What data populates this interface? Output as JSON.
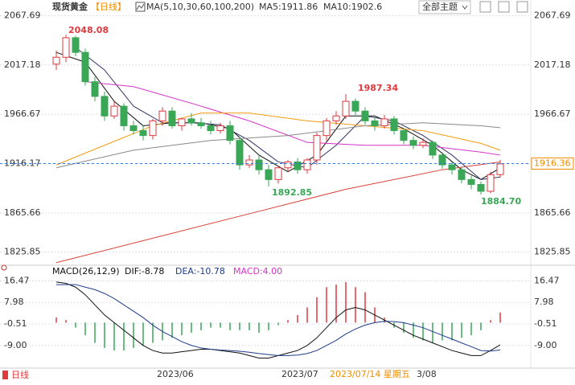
{
  "header": {
    "title": "现货黄金",
    "period": "【日线】",
    "ma_legend": [
      "MA(5,10,30,60,100,200)",
      "MA5:1911.86",
      "MA10:1902.6"
    ],
    "theme_button": "全部主题"
  },
  "chart_data": [
    {
      "type": "candlestick",
      "up_color": "#e0393e",
      "down_color": "#3aa757",
      "open": [
        2018,
        2025,
        2045,
        2030,
        2000,
        1985,
        1965,
        1975,
        1955,
        1950,
        1945,
        1960,
        1970,
        1955,
        1962,
        1958,
        1955,
        1950,
        1955,
        1940,
        1915,
        1920,
        1910,
        1900,
        1912,
        1918,
        1910,
        1920,
        1945,
        1960,
        1965,
        1980,
        1970,
        1960,
        1955,
        1962,
        1950,
        1940,
        1935,
        1938,
        1925,
        1915,
        1910,
        1900,
        1895,
        1888,
        1905
      ],
      "high": [
        2032,
        2048.08,
        2047,
        2034,
        2005,
        1990,
        1980,
        1978,
        1960,
        1955,
        1962,
        1974,
        1974,
        1963,
        1968,
        1963,
        1960,
        1958,
        1960,
        1944,
        1925,
        1924,
        1915,
        1914,
        1920,
        1922,
        1922,
        1948,
        1963,
        1970,
        1987.34,
        1983,
        1974,
        1964,
        1966,
        1965,
        1953,
        1944,
        1942,
        1940,
        1928,
        1918,
        1913,
        1904,
        1898,
        1908,
        1920
      ],
      "low": [
        2012,
        2020,
        2026,
        1996,
        1980,
        1960,
        1962,
        1950,
        1946,
        1940,
        1941,
        1955,
        1952,
        1950,
        1955,
        1952,
        1946,
        1947,
        1936,
        1910,
        1912,
        1905,
        1892.85,
        1896,
        1908,
        1906,
        1906,
        1915,
        1940,
        1956,
        1962,
        1966,
        1956,
        1950,
        1952,
        1946,
        1936,
        1931,
        1932,
        1921,
        1911,
        1905,
        1896,
        1890,
        1884.7,
        1886,
        1902
      ],
      "close": [
        2025,
        2045,
        2030,
        2000,
        1985,
        1965,
        1975,
        1955,
        1950,
        1945,
        1960,
        1970,
        1955,
        1962,
        1958,
        1955,
        1950,
        1955,
        1940,
        1915,
        1920,
        1910,
        1900,
        1912,
        1918,
        1910,
        1920,
        1945,
        1960,
        1965,
        1980,
        1970,
        1960,
        1955,
        1962,
        1950,
        1940,
        1935,
        1938,
        1925,
        1915,
        1910,
        1900,
        1895,
        1888,
        1905,
        1916
      ],
      "ylim": [
        1814,
        2077
      ],
      "yticks": [
        2067.69,
        2017.18,
        1966.67,
        1916.17,
        1865.66,
        1825.85
      ],
      "grid": true,
      "last_price": 1916.36,
      "annotations": [
        "2048.08",
        "1987.34",
        "1892.85",
        "1884.70"
      ],
      "series": [
        {
          "color": "#111111",
          "x": [
            0,
            3,
            6,
            9,
            12,
            15,
            18,
            21,
            24,
            27,
            30,
            33,
            36,
            39,
            42,
            44,
            46
          ],
          "values": [
            2030,
            2020,
            1980,
            1955,
            1958,
            1958,
            1952,
            1925,
            1908,
            1925,
            1965,
            1965,
            1952,
            1935,
            1910,
            1900,
            1911.86
          ]
        },
        {
          "color": "#333366",
          "x": [
            2,
            5,
            8,
            11,
            14,
            17,
            20,
            23,
            26,
            29,
            32,
            35,
            38,
            41,
            44,
            46
          ],
          "values": [
            2035,
            2012,
            1975,
            1958,
            1958,
            1956,
            1940,
            1918,
            1912,
            1935,
            1965,
            1960,
            1945,
            1925,
            1900,
            1902.6
          ]
        },
        {
          "color": "#d633c9",
          "x": [
            3,
            8,
            14,
            20,
            26,
            32,
            38,
            44,
            46
          ],
          "values": [
            2000,
            1995,
            1978,
            1960,
            1938,
            1935,
            1935,
            1928,
            1925
          ]
        },
        {
          "color": "#f39c12",
          "x": [
            0,
            5,
            10,
            15,
            20,
            26,
            32,
            38,
            44,
            46
          ],
          "values": [
            1915,
            1935,
            1955,
            1968,
            1968,
            1960,
            1955,
            1950,
            1937,
            1930
          ]
        },
        {
          "color": "#888888",
          "x": [
            0,
            8,
            16,
            24,
            32,
            38,
            44,
            46
          ],
          "values": [
            1912,
            1930,
            1940,
            1945,
            1955,
            1958,
            1955,
            1953
          ]
        },
        {
          "color": "#d9423a",
          "x": [
            0,
            10,
            20,
            30,
            40,
            46
          ],
          "values": [
            1815,
            1840,
            1865,
            1890,
            1910,
            1918
          ]
        }
      ]
    },
    {
      "type": "macd",
      "legend": [
        "MACD(26,12,9)",
        "DIF:-8.78",
        "DEA:-10.78",
        "MACD:4.00"
      ],
      "legend_colors": [
        "#111111",
        "#111111",
        "#1f3c88",
        "#d633c9"
      ],
      "ylim": [
        -17,
        22
      ],
      "yticks": [
        16.47,
        7.98,
        -0.51,
        {
          "value": -9,
          "label": "-9.00"
        }
      ],
      "grid": true,
      "series": [
        {
          "color": "#111111",
          "values": [
            16,
            15.5,
            14,
            11,
            7,
            3,
            0,
            -3,
            -6,
            -9,
            -11,
            -12,
            -12,
            -11.5,
            -11,
            -10.5,
            -10.5,
            -11,
            -11.5,
            -12,
            -13,
            -14,
            -14,
            -13,
            -12,
            -11,
            -9,
            -6,
            -2,
            2,
            5,
            6,
            5,
            3,
            1,
            -1,
            -3,
            -5,
            -6.5,
            -8,
            -9.5,
            -11,
            -12,
            -13,
            -13,
            -11,
            -8.78
          ]
        },
        {
          "color": "#1f3c88",
          "values": [
            15,
            15,
            15,
            14,
            13,
            11.5,
            9.5,
            7,
            4.5,
            2,
            -1,
            -3.5,
            -5.5,
            -7.5,
            -9,
            -10,
            -10.5,
            -10.8,
            -11,
            -11.3,
            -11.7,
            -12.2,
            -12.6,
            -13,
            -13,
            -12.8,
            -12.2,
            -11,
            -9,
            -7,
            -4.5,
            -2.5,
            -1,
            0,
            0.5,
            0.4,
            0,
            -1,
            -2,
            -3.5,
            -5,
            -6.5,
            -8,
            -9.5,
            -11,
            -11.2,
            -10.78
          ]
        }
      ],
      "bars": {
        "up_color": "#e0393e",
        "down_color": "#3aa757",
        "values": [
          2,
          1,
          -2,
          -5,
          -8,
          -10,
          -11,
          -11,
          -10,
          -9,
          -8,
          -7,
          -6,
          -5,
          -4,
          -3,
          -2,
          -2,
          -3,
          -3,
          -3,
          -4,
          -3,
          -1,
          1,
          3,
          6,
          10,
          14,
          15,
          16,
          14,
          12,
          6,
          2,
          -2,
          -4,
          -6,
          -7,
          -8,
          -7,
          -7,
          -6,
          -5,
          -3,
          1,
          4
        ]
      }
    }
  ],
  "footer": {
    "period": "日线",
    "x_labels": [
      "2023/06",
      "2023/07"
    ],
    "cursor_date": "2023/07/14 星期五",
    "cursor_tail": "3/08"
  }
}
